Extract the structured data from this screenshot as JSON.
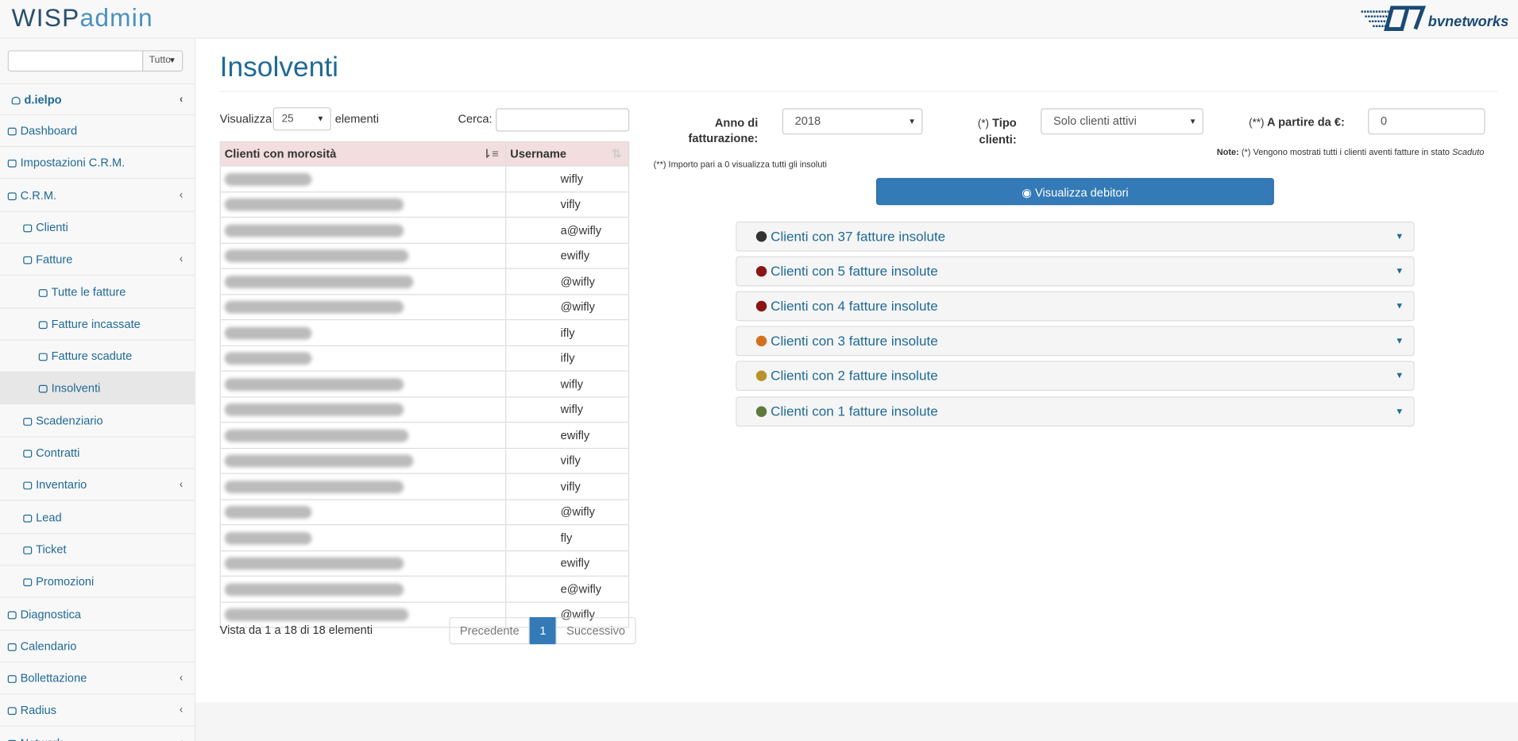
{
  "header": {
    "logo_prefix": "WISP",
    "logo_suffix": "admin",
    "partner_logo": "bvnetworks"
  },
  "sidebar": {
    "search_scope": "Tutto",
    "user": "d.ielpo",
    "menu": [
      {
        "label": "Dashboard",
        "level": 0,
        "expandable": false,
        "active": false
      },
      {
        "label": "Impostazioni C.R.M.",
        "level": 0,
        "expandable": false,
        "active": false
      },
      {
        "label": "C.R.M.",
        "level": 0,
        "expandable": true,
        "active": false
      },
      {
        "label": "Clienti",
        "level": 1,
        "expandable": false,
        "active": false
      },
      {
        "label": "Fatture",
        "level": 1,
        "expandable": true,
        "active": false
      },
      {
        "label": "Tutte le fatture",
        "level": 2,
        "expandable": false,
        "active": false
      },
      {
        "label": "Fatture incassate",
        "level": 2,
        "expandable": false,
        "active": false
      },
      {
        "label": "Fatture scadute",
        "level": 2,
        "expandable": false,
        "active": false
      },
      {
        "label": "Insolventi",
        "level": 2,
        "expandable": false,
        "active": true
      },
      {
        "label": "Scadenziario",
        "level": 1,
        "expandable": false,
        "active": false
      },
      {
        "label": "Contratti",
        "level": 1,
        "expandable": false,
        "active": false
      },
      {
        "label": "Inventario",
        "level": 1,
        "expandable": true,
        "active": false
      },
      {
        "label": "Lead",
        "level": 1,
        "expandable": false,
        "active": false
      },
      {
        "label": "Ticket",
        "level": 1,
        "expandable": false,
        "active": false
      },
      {
        "label": "Promozioni",
        "level": 1,
        "expandable": false,
        "active": false
      },
      {
        "label": "Diagnostica",
        "level": 0,
        "expandable": false,
        "active": false
      },
      {
        "label": "Calendario",
        "level": 0,
        "expandable": false,
        "active": false
      },
      {
        "label": "Bollettazione",
        "level": 0,
        "expandable": true,
        "active": false
      },
      {
        "label": "Radius",
        "level": 0,
        "expandable": true,
        "active": false
      },
      {
        "label": "Network",
        "level": 0,
        "expandable": true,
        "active": false
      }
    ]
  },
  "page": {
    "title": "Insolventi"
  },
  "table_controls": {
    "show_prefix": "Visualizza",
    "page_size": "25",
    "show_suffix": "elementi",
    "search_label": "Cerca:"
  },
  "table": {
    "columns": [
      "Clienti con morosità",
      "Username"
    ],
    "usernames": [
      "wifly",
      "vifly",
      "a@wifly",
      "ewifly",
      "@wifly",
      "@wifly",
      "ifly",
      "ifly",
      "wifly",
      "wifly",
      "ewifly",
      "vifly",
      "vifly",
      "@wifly",
      "fly",
      "ewifly",
      "e@wifly",
      "@wifly"
    ],
    "info": "Vista da 1 a 18 di 18 elementi",
    "pagination": {
      "previous": "Precedente",
      "current": "1",
      "next": "Successivo"
    }
  },
  "filters": {
    "year_label": "Anno di fatturazione:",
    "year_value": "2018",
    "type_marker": "(*)",
    "type_label": "Tipo clienti:",
    "type_value": "Solo clienti attivi",
    "amount_marker": "(**)",
    "amount_label": "A partire da €:",
    "amount_value": "0",
    "note_label": "Note:",
    "note_text": "(*) Vengono mostrati tutti i clienti aventi fatture in stato",
    "note_state": "Scaduto",
    "amount_note": "(**) Importo pari a 0 visualizza tutti gli insoluti",
    "button": "Visualizza debitori"
  },
  "groups": [
    {
      "label": "Clienti con 37 fatture insolute",
      "color": "#333333"
    },
    {
      "label": "Clienti con 5 fatture insolute",
      "color": "#8b1414"
    },
    {
      "label": "Clienti con 4 fatture insolute",
      "color": "#8b1414"
    },
    {
      "label": "Clienti con 3 fatture insolute",
      "color": "#d2721f"
    },
    {
      "label": "Clienti con 2 fatture insolute",
      "color": "#b8922a"
    },
    {
      "label": "Clienti con 1 fatture insolute",
      "color": "#5e7a3c"
    }
  ]
}
